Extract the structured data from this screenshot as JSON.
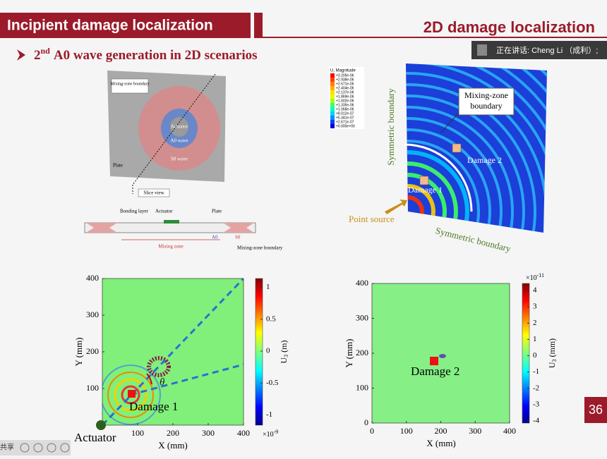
{
  "header": {
    "left_title": "Incipient damage localization",
    "right_title": "2D damage localization"
  },
  "bullet": {
    "number": "2",
    "suffix": "nd",
    "text": "A0 wave generation in 2D scenarios"
  },
  "meeting_banner": "正在讲话: Cheng Li （成利）;",
  "plate_diagram": {
    "mixing_zone_boundary": "Mixing-zone boundary",
    "actuator": "Actuator",
    "a0_wave": "A0 wave",
    "s0_wave": "S0 wave",
    "plate": "Plate",
    "slice_view": "Slice view",
    "bonding_layer": "Bonding layer",
    "slice_actuator": "Actuator",
    "slice_plate": "Plate",
    "mixing_zone": "Mixing zone",
    "a0": "A0",
    "s0": "S0",
    "slice_boundary": "Mixing-zone boundary"
  },
  "fe_model": {
    "legend_title": "U, Magnitude",
    "legend_values": [
      "+3.205e-06",
      "+2.938e-06",
      "+2.671e-06",
      "+2.404e-06",
      "+2.137e-06",
      "+1.869e-06",
      "+1.602e-06",
      "+1.335e-06",
      "+1.068e-06",
      "+8.012e-07",
      "+5.341e-07",
      "+2.671e-07",
      "+0.000e+00"
    ],
    "mixing_zone_boundary": "Mixing-zone boundary",
    "symmetric_boundary_left": "Symmetric boundary",
    "damage_2": "Damage 2",
    "damage_1": "Damage 1",
    "point_source": "Point source",
    "symmetric_boundary_bottom": "Symmetric boundary"
  },
  "plot_left": {
    "xlabel": "X (mm)",
    "ylabel": "Y (mm)",
    "xticks": [
      100,
      200,
      300,
      400
    ],
    "yticks": [
      100,
      200,
      300,
      400
    ],
    "colorbar_ticks": [
      1,
      0.5,
      0,
      -0.5,
      -1
    ],
    "colorbar_exponent": {
      "base": "×10",
      "power": "-9"
    },
    "colorbar_label": {
      "symbol": "U",
      "subscript": "3",
      "unit": " (m)"
    },
    "damage_label": "Damage 1",
    "angle_label": "θ",
    "actuator_label": "Actuator"
  },
  "plot_right": {
    "xlabel": "X (mm)",
    "ylabel": "Y (mm)",
    "xticks": [
      0,
      100,
      200,
      300,
      400
    ],
    "yticks": [
      0,
      100,
      200,
      300,
      400
    ],
    "colorbar_ticks": [
      4,
      3,
      2,
      1,
      0,
      -1,
      -2,
      -3,
      -4
    ],
    "colorbar_exponent": {
      "base": "×10",
      "power": "-11"
    },
    "colorbar_label": {
      "symbol": "U",
      "subscript": "3",
      "unit": " (mm)"
    },
    "damage_label": "Damage 2"
  },
  "page_number": "36",
  "taskbar": {
    "share": "共享"
  }
}
